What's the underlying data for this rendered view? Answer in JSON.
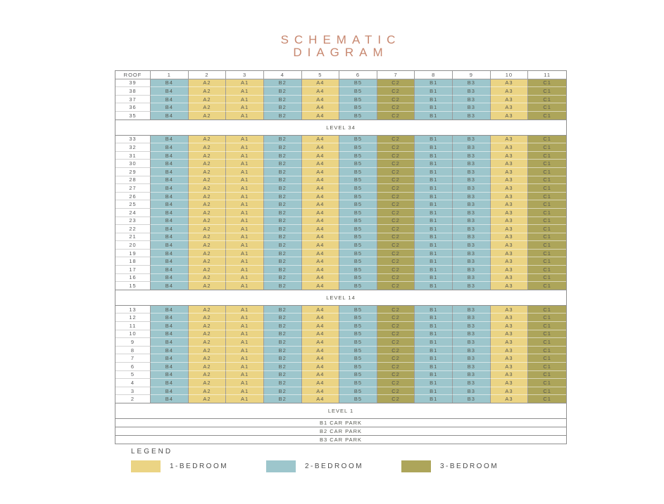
{
  "page": {
    "title_line1": "SCHEMATIC",
    "title_line2": "DIAGRAM",
    "title_color": "#C7876F"
  },
  "schematic": {
    "corner_label": "ROOF",
    "stack_numbers": [
      "1",
      "2",
      "3",
      "4",
      "5",
      "6",
      "7",
      "8",
      "9",
      "10",
      "11"
    ],
    "units": [
      "B4",
      "A2",
      "A1",
      "B2",
      "A4",
      "B5",
      "C2",
      "B1",
      "B3",
      "A3",
      "C1"
    ],
    "unit_bedroom_type": {
      "A1": "1-bedroom",
      "A2": "1-bedroom",
      "A3": "1-bedroom",
      "A4": "1-bedroom",
      "B1": "2-bedroom",
      "B2": "2-bedroom",
      "B3": "2-bedroom",
      "B4": "2-bedroom",
      "B5": "2-bedroom",
      "C1": "3-bedroom",
      "C2": "3-bedroom"
    },
    "sections": [
      {
        "kind": "floors",
        "floors": [
          "39",
          "38",
          "37",
          "36",
          "35"
        ]
      },
      {
        "kind": "band",
        "label": "LEVEL 34",
        "tall": true
      },
      {
        "kind": "floors",
        "floors": [
          "33",
          "32",
          "31",
          "30",
          "29",
          "28",
          "27",
          "26",
          "25",
          "24",
          "23",
          "22",
          "21",
          "20",
          "19",
          "18",
          "17",
          "16",
          "15"
        ]
      },
      {
        "kind": "band",
        "label": "LEVEL 14",
        "tall": true
      },
      {
        "kind": "floors",
        "floors": [
          "13",
          "12",
          "11",
          "10",
          "9",
          "8",
          "7",
          "6",
          "5",
          "4",
          "3",
          "2"
        ]
      },
      {
        "kind": "band",
        "label": "LEVEL 1",
        "tall": true
      },
      {
        "kind": "band",
        "label": "B1 CAR PARK",
        "tall": false
      },
      {
        "kind": "band",
        "label": "B2 CAR PARK",
        "tall": false
      },
      {
        "kind": "band",
        "label": "B3 CAR PARK",
        "tall": false
      }
    ]
  },
  "legend": {
    "title": "LEGEND",
    "items": [
      {
        "label": "1-BEDROOM",
        "key": "1-bedroom",
        "color": "#EBD484"
      },
      {
        "label": "2-BEDROOM",
        "key": "2-bedroom",
        "color": "#9DC6CC"
      },
      {
        "label": "3-BEDROOM",
        "key": "3-bedroom",
        "color": "#ADA55A"
      }
    ]
  },
  "colors": {
    "1-bedroom": "#EBD484",
    "2-bedroom": "#9DC6CC",
    "3-bedroom": "#ADA55A",
    "grid_line": "#9b9b9b",
    "cell_text": "#56574f"
  }
}
